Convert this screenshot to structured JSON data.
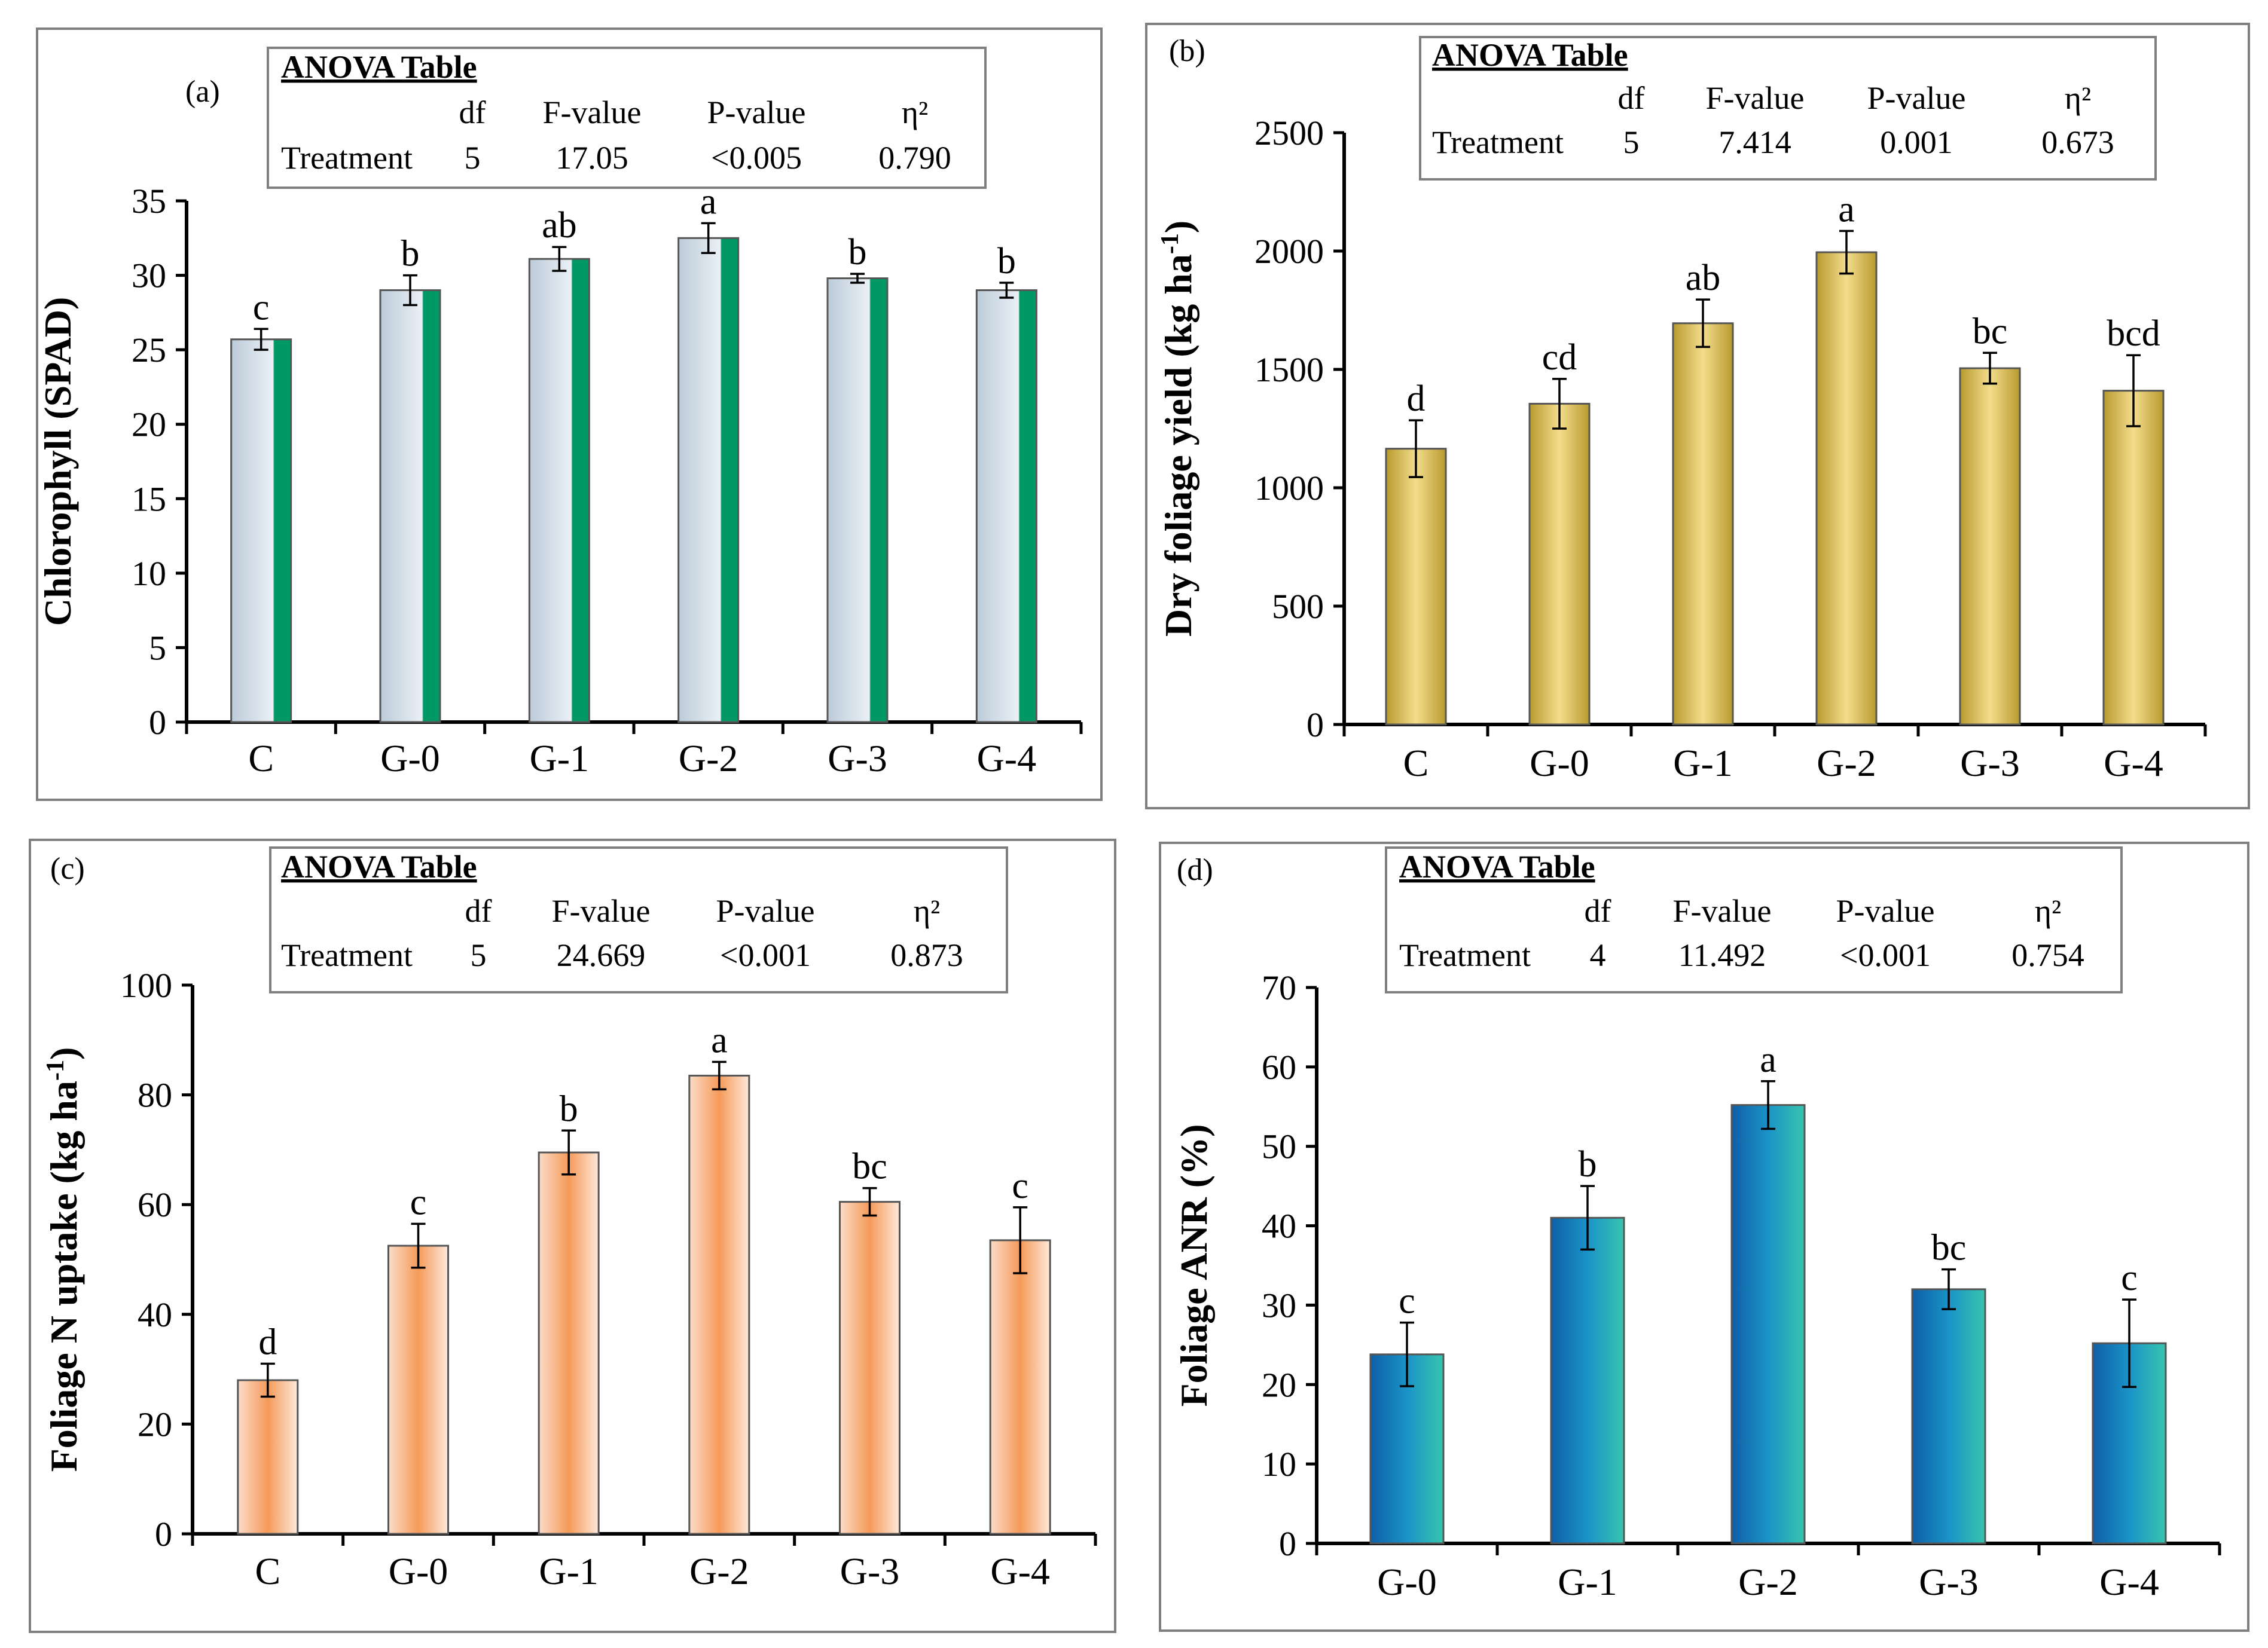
{
  "colors": {
    "frame": "#7f7f7f",
    "bar_outline": "#555555"
  },
  "chart_data": [
    {
      "id": "a",
      "type": "bar",
      "panel_label": "(a)",
      "title": "",
      "xlabel": "",
      "ylabel": "Chlorophyll (SPAD)",
      "ylim": [
        0,
        35
      ],
      "yticks": [
        0,
        5,
        10,
        15,
        20,
        25,
        30,
        35
      ],
      "grid": false,
      "categories": [
        "C",
        "G-0",
        "G-1",
        "G-2",
        "G-3",
        "G-4"
      ],
      "values": [
        25.7,
        29.0,
        31.1,
        32.5,
        29.8,
        29.0
      ],
      "errors": [
        0.7,
        1.0,
        0.8,
        1.0,
        0.3,
        0.5
      ],
      "letters": [
        "c",
        "b",
        "ab",
        "a",
        "b",
        "b"
      ],
      "gradient": [
        "#bccbd9",
        "#eaf0f5",
        "#009966"
      ],
      "anova": {
        "title": "ANOVA Table",
        "headers": [
          "df",
          "F-value",
          "P-value",
          "η²"
        ],
        "row_label": "Treatment",
        "values": [
          "5",
          "17.05",
          "<0.005",
          "0.790"
        ]
      }
    },
    {
      "id": "b",
      "type": "bar",
      "panel_label": "(b)",
      "title": "",
      "xlabel": "",
      "ylabel": "Dry foliage yield (kg ha",
      "ylabel_sup": "-1",
      "ylabel_end": ")",
      "ylim": [
        0,
        2500
      ],
      "yticks": [
        0,
        500,
        1000,
        1500,
        2000,
        2500
      ],
      "grid": false,
      "categories": [
        "C",
        "G-0",
        "G-1",
        "G-2",
        "G-3",
        "G-4"
      ],
      "values": [
        1165,
        1355,
        1695,
        1995,
        1505,
        1410
      ],
      "errors": [
        120,
        105,
        100,
        90,
        65,
        150
      ],
      "letters": [
        "d",
        "cd",
        "ab",
        "a",
        "bc",
        "bcd"
      ],
      "gradient": [
        "#b89a2e",
        "#f3dd8c",
        "#b89a2e"
      ],
      "anova": {
        "title": "ANOVA Table",
        "headers": [
          "df",
          "F-value",
          "P-value",
          "η²"
        ],
        "row_label": "Treatment",
        "values": [
          "5",
          "7.414",
          "0.001",
          "0.673"
        ]
      }
    },
    {
      "id": "c",
      "type": "bar",
      "panel_label": "(c)",
      "title": "",
      "xlabel": "",
      "ylabel": "Foliage N uptake (kg ha",
      "ylabel_sup": "-1",
      "ylabel_end": ")",
      "ylim": [
        0,
        100
      ],
      "yticks": [
        0,
        20,
        40,
        60,
        80,
        100
      ],
      "grid": false,
      "categories": [
        "C",
        "G-0",
        "G-1",
        "G-2",
        "G-3",
        "G-4"
      ],
      "values": [
        28.0,
        52.5,
        69.5,
        83.5,
        60.5,
        53.5
      ],
      "errors": [
        3.0,
        4.0,
        4.0,
        2.5,
        2.5,
        6.0
      ],
      "letters": [
        "d",
        "c",
        "b",
        "a",
        "bc",
        "c"
      ],
      "gradient": [
        "#fbdcc8",
        "#f59a59",
        "#fde9da"
      ],
      "anova": {
        "title": "ANOVA Table",
        "headers": [
          "df",
          "F-value",
          "P-value",
          "η²"
        ],
        "row_label": "Treatment",
        "values": [
          "5",
          "24.669",
          "<0.001",
          "0.873"
        ]
      }
    },
    {
      "id": "d",
      "type": "bar",
      "panel_label": "(d)",
      "title": "",
      "xlabel": "",
      "ylabel": "Foliage ANR (%)",
      "ylim": [
        0,
        70
      ],
      "yticks": [
        0,
        10,
        20,
        30,
        40,
        50,
        60,
        70
      ],
      "grid": false,
      "categories": [
        "G-0",
        "G-1",
        "G-2",
        "G-3",
        "G-4"
      ],
      "values": [
        23.8,
        41.0,
        55.2,
        32.0,
        25.2
      ],
      "errors": [
        4.0,
        4.0,
        3.0,
        2.5,
        5.5
      ],
      "letters": [
        "c",
        "b",
        "a",
        "bc",
        "c"
      ],
      "gradient": [
        "#0f5fa6",
        "#1a93c8",
        "#37c5ad"
      ],
      "anova": {
        "title": "ANOVA Table",
        "headers": [
          "df",
          "F-value",
          "P-value",
          "η²"
        ],
        "row_label": "Treatment",
        "values": [
          "4",
          "11.492",
          "<0.001",
          "0.754"
        ]
      }
    }
  ]
}
